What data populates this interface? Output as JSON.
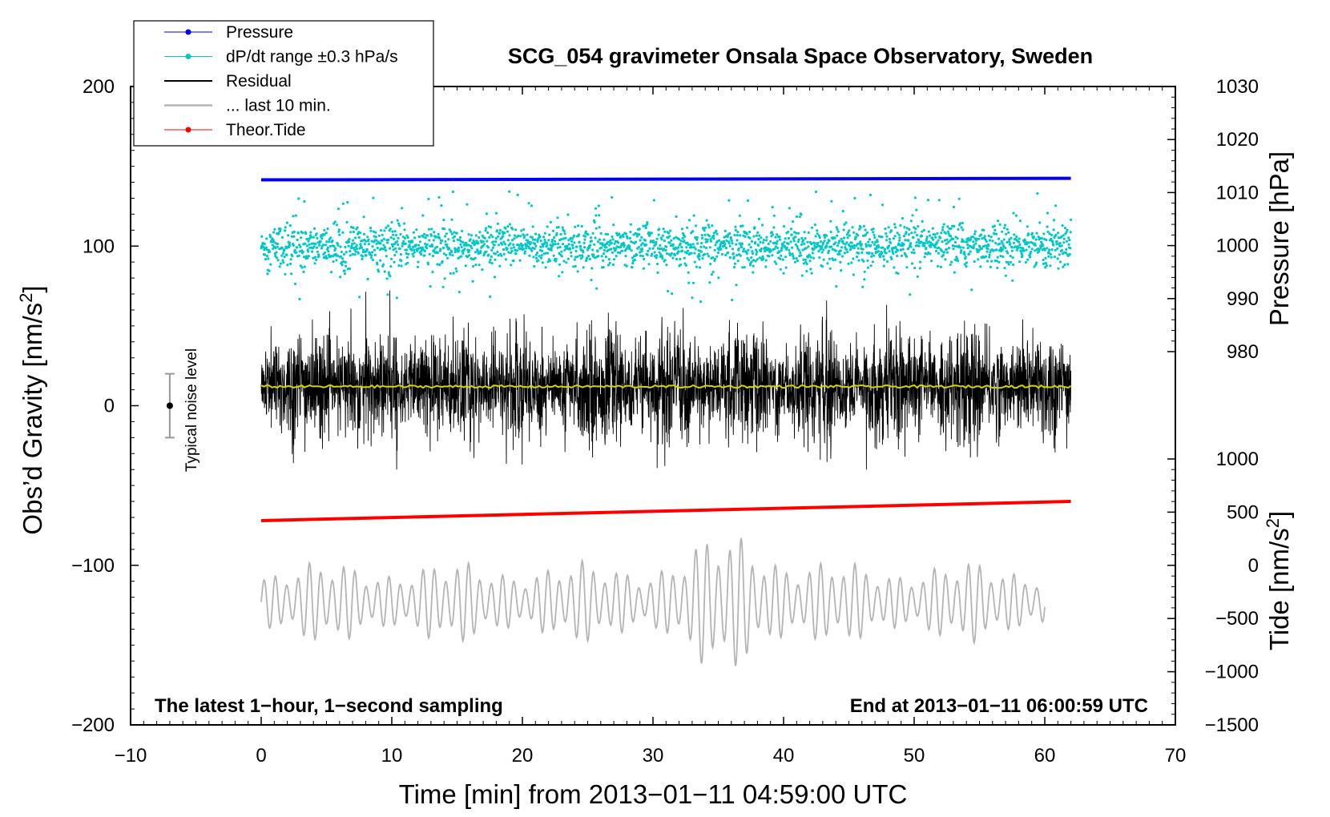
{
  "chart_data": {
    "type": "line",
    "title": "SCG_054 gravimeter Onsala Space Observatory, Sweden",
    "xlabel": "Time [min] from 2013−01−11 04:59:00 UTC",
    "xlim": [
      -10,
      70
    ],
    "xticks": [
      -10,
      0,
      10,
      20,
      30,
      40,
      50,
      60,
      70
    ],
    "xtick_labels": [
      "−10",
      "0",
      "10",
      "20",
      "30",
      "40",
      "50",
      "60",
      "70"
    ],
    "left_axis": {
      "label_main": "Obs’d Gravity [nm/s",
      "label_sup": "2",
      "label_end": "]",
      "ylim": [
        -200,
        200
      ],
      "ticks": [
        200,
        100,
        0,
        -100,
        -200
      ],
      "tick_labels": [
        "200",
        "100",
        "0",
        "−100",
        "−200"
      ]
    },
    "pressure_axis": {
      "label": "Pressure [hPa]",
      "ylim": [
        980,
        1030
      ],
      "ticks": [
        1030,
        1020,
        1010,
        1000,
        990,
        980
      ],
      "tick_labels": [
        "1030",
        "1020",
        "1010",
        "1000",
        "990",
        "980"
      ]
    },
    "tide_axis": {
      "label_main": "Tide [nm/s",
      "label_sup": "2",
      "label_end": "]",
      "ylim": [
        -1500,
        1000
      ],
      "ticks": [
        1000,
        500,
        0,
        -500,
        -1000,
        -1500
      ],
      "tick_labels": [
        "1000",
        "500",
        "0",
        "−500",
        "−1000",
        "−1500"
      ]
    },
    "legend": {
      "placement": "top-left",
      "entries": [
        "Pressure",
        "dP/dt range ±0.3 hPa/s",
        "Residual",
        "... last 10 min.",
        "Theor.Tide"
      ]
    },
    "series": [
      {
        "name": "Pressure",
        "axis": "left",
        "color": "#0000ee",
        "x": [
          0,
          62
        ],
        "values": [
          141.5,
          142.5
        ]
      },
      {
        "name": "dP/dt range ±0.3 hPa/s",
        "axis": "left",
        "color": "#00c8c8",
        "x_range": [
          0,
          62
        ],
        "center": 100,
        "typical_spread": 6,
        "outlier_range": [
          60,
          135
        ]
      },
      {
        "name": "Residual",
        "axis": "left",
        "color": "#000000",
        "x_range": [
          0,
          62
        ],
        "center": 12,
        "range": [
          -40,
          73
        ]
      },
      {
        "name": "Residual (smoothed)",
        "axis": "left",
        "color": "#d4d400",
        "x_range": [
          0,
          62
        ],
        "value": 12
      },
      {
        "name": "... last 10 min.",
        "axis": "left",
        "color": "#b4b4b4",
        "x_range": [
          0,
          60
        ],
        "center": -123,
        "range": [
          -168,
          -76
        ]
      },
      {
        "name": "Theor.Tide",
        "axis": "left",
        "color": "#ff0000",
        "x": [
          0,
          62
        ],
        "values": [
          -72,
          -60
        ]
      }
    ],
    "noise_bar": {
      "label": "Typical noise level",
      "x": -7,
      "center": 0,
      "range": [
        -20,
        20
      ]
    },
    "footer_left": "The latest 1−hour, 1−second sampling",
    "footer_right": "End at 2013−01−11 06:00:59 UTC"
  }
}
